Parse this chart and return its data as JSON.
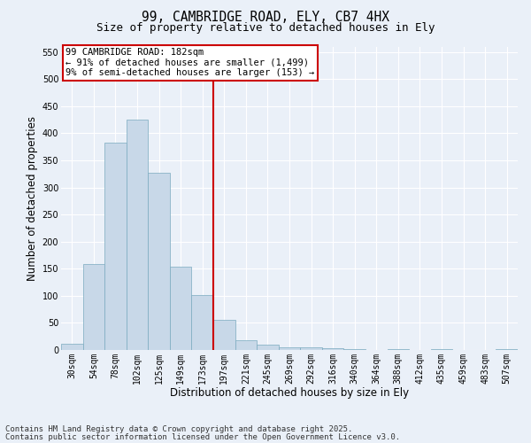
{
  "title_line1": "99, CAMBRIDGE ROAD, ELY, CB7 4HX",
  "title_line2": "Size of property relative to detached houses in Ely",
  "xlabel": "Distribution of detached houses by size in Ely",
  "ylabel": "Number of detached properties",
  "categories": [
    "30sqm",
    "54sqm",
    "78sqm",
    "102sqm",
    "125sqm",
    "149sqm",
    "173sqm",
    "197sqm",
    "221sqm",
    "245sqm",
    "269sqm",
    "292sqm",
    "316sqm",
    "340sqm",
    "364sqm",
    "388sqm",
    "412sqm",
    "435sqm",
    "459sqm",
    "483sqm",
    "507sqm"
  ],
  "values": [
    12,
    158,
    383,
    425,
    327,
    153,
    102,
    55,
    18,
    10,
    5,
    5,
    4,
    1,
    0,
    2,
    0,
    1,
    0,
    0,
    2
  ],
  "bar_color": "#c8d8e8",
  "bar_edge_color": "#7aaabf",
  "vline_index": 7,
  "vline_color": "#cc0000",
  "annotation_text": "99 CAMBRIDGE ROAD: 182sqm\n← 91% of detached houses are smaller (1,499)\n9% of semi-detached houses are larger (153) →",
  "annotation_box_color": "#ffffff",
  "annotation_box_edge": "#cc0000",
  "ylim": [
    0,
    560
  ],
  "yticks": [
    0,
    50,
    100,
    150,
    200,
    250,
    300,
    350,
    400,
    450,
    500,
    550
  ],
  "footer_line1": "Contains HM Land Registry data © Crown copyright and database right 2025.",
  "footer_line2": "Contains public sector information licensed under the Open Government Licence v3.0.",
  "bg_color": "#eaf0f8",
  "plot_bg_color": "#eaf0f8",
  "title_fontsize": 10.5,
  "subtitle_fontsize": 9,
  "axis_label_fontsize": 8.5,
  "tick_fontsize": 7,
  "footer_fontsize": 6.5,
  "annotation_fontsize": 7.5
}
